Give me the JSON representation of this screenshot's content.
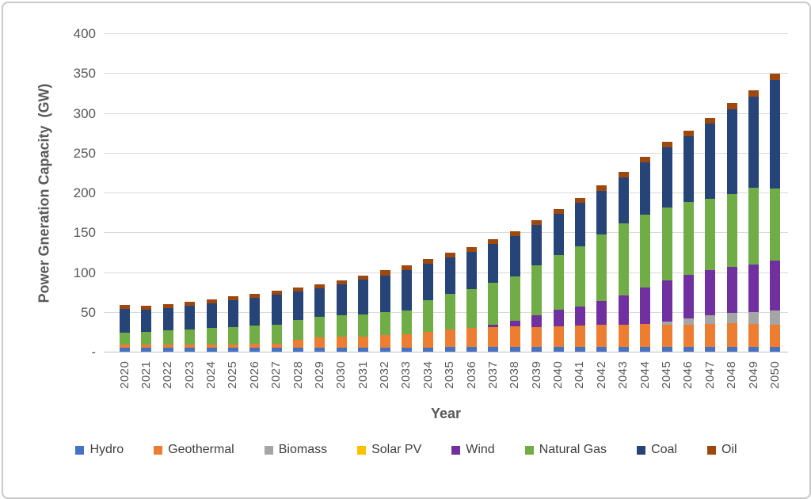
{
  "chart_data": {
    "type": "bar",
    "stacked": true,
    "title": "",
    "xlabel": "Year",
    "ylabel": "Power Gneration Capacity  (GW)",
    "ylim": [
      0,
      400
    ],
    "grid": true,
    "legend_position": "bottom",
    "y_ticks": [
      {
        "value": 0,
        "label": "-"
      },
      {
        "value": 50,
        "label": "50"
      },
      {
        "value": 100,
        "label": "100"
      },
      {
        "value": 150,
        "label": "150"
      },
      {
        "value": 200,
        "label": "200"
      },
      {
        "value": 250,
        "label": "250"
      },
      {
        "value": 300,
        "label": "300"
      },
      {
        "value": 350,
        "label": "350"
      },
      {
        "value": 400,
        "label": "400"
      }
    ],
    "categories": [
      "2020",
      "2021",
      "2022",
      "2023",
      "2024",
      "2025",
      "2026",
      "2027",
      "2028",
      "2029",
      "2030",
      "2031",
      "2032",
      "2033",
      "2034",
      "2035",
      "2036",
      "2037",
      "2038",
      "2039",
      "2040",
      "2041",
      "2042",
      "2043",
      "2044",
      "2045",
      "2046",
      "2047",
      "2048",
      "2049",
      "2050"
    ],
    "series": [
      {
        "name": "Hydro",
        "color": "#4472C4",
        "values": [
          5,
          5,
          5,
          5,
          5,
          5,
          5,
          5,
          5,
          5,
          5,
          5,
          5,
          5,
          5,
          6,
          6,
          6,
          6,
          6,
          6,
          6,
          6,
          6,
          6,
          6,
          6,
          6,
          6,
          6,
          6
        ]
      },
      {
        "name": "Geothermal",
        "color": "#ED7D31",
        "values": [
          4,
          4,
          4,
          4,
          4,
          4,
          5,
          5,
          10,
          13,
          14,
          14,
          16,
          17,
          20,
          22,
          24,
          25,
          26,
          25,
          26,
          27,
          28,
          28,
          29,
          28,
          28,
          29,
          30,
          29,
          28
        ]
      },
      {
        "name": "Biomass",
        "color": "#A5A5A5",
        "values": [
          0,
          0,
          0,
          0,
          0,
          0,
          0,
          0,
          0,
          0,
          0,
          0,
          0,
          0,
          0,
          0,
          0,
          0,
          0,
          0,
          0,
          0,
          0,
          0,
          0,
          4,
          8,
          11,
          13,
          15,
          18
        ]
      },
      {
        "name": "Solar PV",
        "color": "#FFC000",
        "values": [
          0,
          0,
          0,
          0,
          0,
          0,
          0,
          0,
          0,
          0,
          0,
          0,
          0,
          0,
          0,
          0,
          0,
          0,
          0,
          0,
          0,
          0,
          0,
          0,
          0,
          0,
          0,
          0,
          0,
          0,
          0
        ]
      },
      {
        "name": "Wind",
        "color": "#7030A0",
        "values": [
          0,
          0,
          0,
          0,
          0,
          0,
          0,
          0,
          0,
          0,
          0,
          0,
          0,
          0,
          0,
          0,
          0,
          3,
          7,
          15,
          21,
          24,
          30,
          37,
          46,
          52,
          55,
          56,
          57,
          59,
          62
        ]
      },
      {
        "name": "Natural Gas",
        "color": "#70AD47",
        "values": [
          15,
          16,
          18,
          19,
          21,
          22,
          23,
          24,
          25,
          26,
          27,
          28,
          29,
          30,
          40,
          45,
          49,
          53,
          56,
          62,
          68,
          75,
          83,
          90,
          91,
          91,
          91,
          90,
          92,
          97,
          91
        ]
      },
      {
        "name": "Coal",
        "color": "#264478",
        "values": [
          30,
          28,
          28,
          30,
          31,
          34,
          35,
          38,
          36,
          36,
          39,
          44,
          46,
          50,
          45,
          45,
          46,
          48,
          50,
          51,
          52,
          55,
          55,
          58,
          66,
          76,
          83,
          95,
          106,
          114,
          136
        ]
      },
      {
        "name": "Oil",
        "color": "#9E480E",
        "values": [
          5,
          5,
          5,
          5,
          5,
          5,
          5,
          5,
          5,
          5,
          5,
          5,
          6,
          6,
          6,
          6,
          6,
          6,
          6,
          6,
          6,
          6,
          7,
          7,
          7,
          7,
          7,
          7,
          8,
          8,
          8
        ]
      }
    ]
  }
}
